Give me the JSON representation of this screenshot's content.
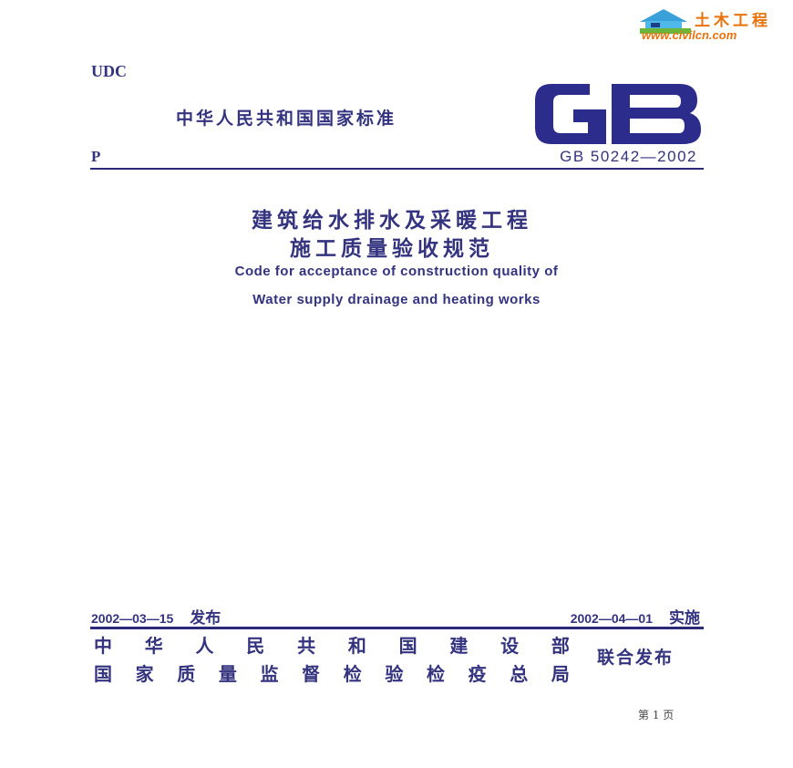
{
  "watermark": {
    "cn": "土木工程",
    "url": "www.civilcn.com"
  },
  "header": {
    "udc": "UDC",
    "national_standard": "中华人民共和国国家标准",
    "p": "P",
    "logo_text": "GB",
    "standard_number": "GB 50242—2002"
  },
  "title": {
    "cn_line1": "建筑给水排水及采暖工程",
    "cn_line2": "施工质量验收规范",
    "en_line1": "Code for acceptance of construction quality of",
    "en_line2": "Water supply drainage and heating works"
  },
  "dates": {
    "issue_date": "2002—03—15",
    "issue_label": "发布",
    "effective_date": "2002—04—01",
    "effective_label": "实施"
  },
  "issuers": {
    "row1": [
      "中",
      "华",
      "人",
      "民",
      "共",
      "和",
      "国",
      "建",
      "设",
      "部"
    ],
    "row2": [
      "国",
      "家",
      "质",
      "量",
      "监",
      "督",
      "检",
      "验",
      "检",
      "疫",
      "总",
      "局"
    ],
    "joint": "联合发布"
  },
  "footer": {
    "page": "第 1 页"
  },
  "colors": {
    "text": "#34337f",
    "watermark_orange": "#e8720c"
  }
}
